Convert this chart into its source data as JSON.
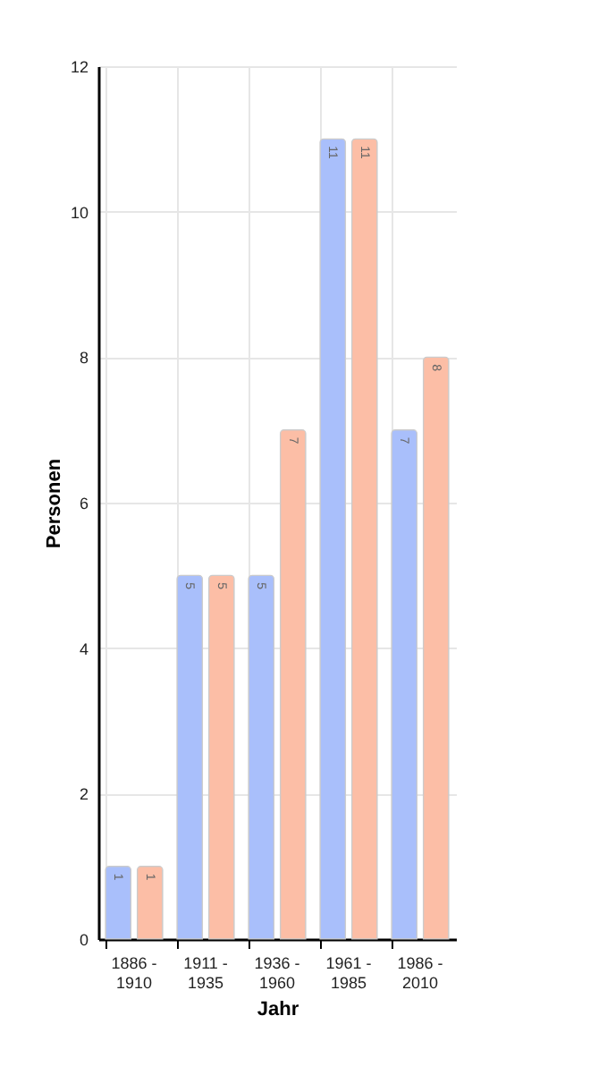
{
  "chart_data": {
    "type": "bar",
    "xlabel": "Jahr",
    "ylabel": "Personen",
    "categories": [
      "1886 - 1910",
      "1911 - 1935",
      "1936 - 1960",
      "1961 - 1985",
      "1986 - 2010"
    ],
    "series": [
      {
        "color": "#a9bffb",
        "values": [
          1,
          5,
          5,
          11,
          7
        ]
      },
      {
        "color": "#fcbea6",
        "values": [
          1,
          5,
          7,
          11,
          8
        ]
      }
    ],
    "ylim": [
      0,
      12
    ],
    "yticks": [
      0,
      2,
      4,
      6,
      8,
      10,
      12
    ],
    "grid": true,
    "data_labels": true,
    "legend": false
  }
}
